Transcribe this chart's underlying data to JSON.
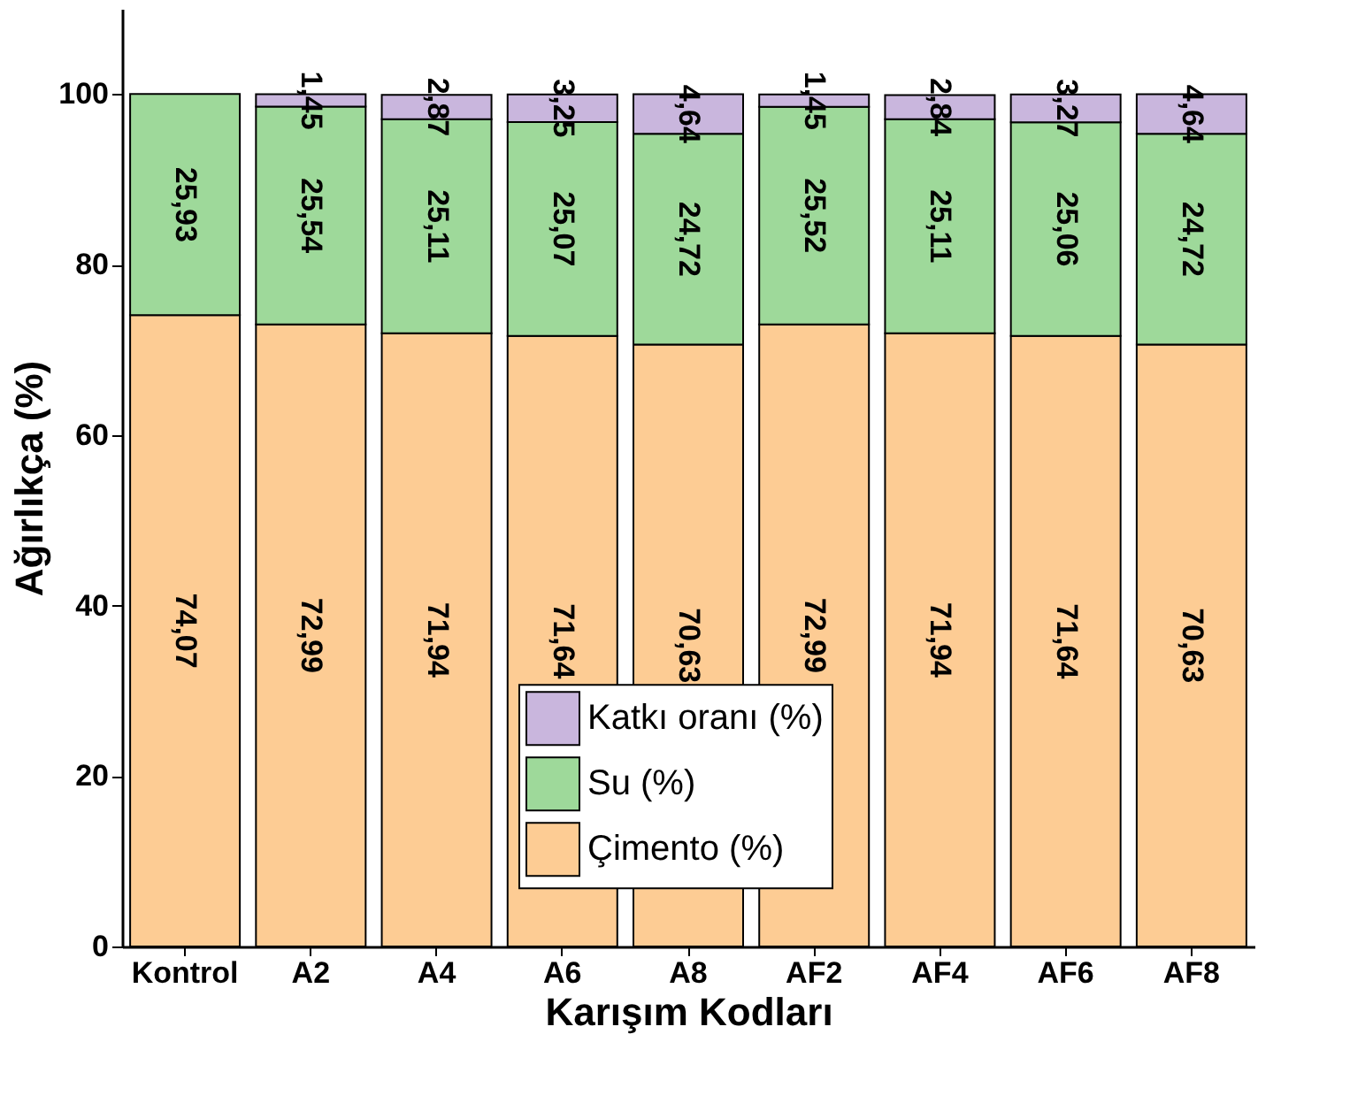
{
  "chart_data": {
    "type": "bar",
    "stacked": true,
    "xlabel": "Karışım Kodları",
    "ylabel": "Ağırlıkça (%)",
    "categories": [
      "Kontrol",
      "A2",
      "A4",
      "A6",
      "A8",
      "AF2",
      "AF4",
      "AF6",
      "AF8"
    ],
    "series": [
      {
        "name": "Çimento (%)",
        "color": "#fdcc94",
        "values": [
          74.07,
          72.99,
          71.94,
          71.64,
          70.63,
          72.99,
          71.94,
          71.64,
          70.63
        ],
        "value_labels": [
          "74,07",
          "72,99",
          "71,94",
          "71,64",
          "70,63",
          "72,99",
          "71,94",
          "71,64",
          "70,63"
        ]
      },
      {
        "name": "Su (%)",
        "color": "#9ed99a",
        "values": [
          25.93,
          25.54,
          25.11,
          25.07,
          24.72,
          25.52,
          25.11,
          25.06,
          24.72
        ],
        "value_labels": [
          "25,93",
          "25,54",
          "25,11",
          "25,07",
          "24,72",
          "25,52",
          "25,11",
          "25,06",
          "24,72"
        ]
      },
      {
        "name": "Katkı oranı (%)",
        "color": "#c9b6dd",
        "values": [
          null,
          1.45,
          2.87,
          3.25,
          4.64,
          1.45,
          2.84,
          3.27,
          4.64
        ],
        "value_labels": [
          null,
          "1,45",
          "2,87",
          "3,25",
          "4,64",
          "1,45",
          "2,84",
          "3,27",
          "4,64"
        ]
      }
    ],
    "ylim": [
      0,
      110
    ],
    "yticks": [
      0,
      20,
      40,
      60,
      80,
      100
    ],
    "legend": "bottom",
    "grid": false
  }
}
